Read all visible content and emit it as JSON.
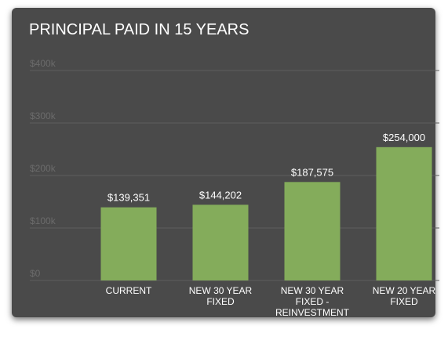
{
  "chart_data": {
    "type": "bar",
    "title": "PRINCIPAL PAID IN 15 YEARS",
    "categories": [
      "CURRENT",
      "NEW 30 YEAR FIXED",
      "NEW 30 YEAR FIXED - REINVESTMENT",
      "NEW 20 YEAR FIXED"
    ],
    "values": [
      139351,
      144202,
      187575,
      254000
    ],
    "value_labels": [
      "$139,351",
      "$144,202",
      "$187,575",
      "$254,000"
    ],
    "color": "#84ac5b",
    "ylim": [
      0,
      400000
    ],
    "yticks": [
      {
        "value": 0,
        "label": "$0"
      },
      {
        "value": 100000,
        "label": "$100k"
      },
      {
        "value": 200000,
        "label": "$200k"
      },
      {
        "value": 300000,
        "label": "$300k"
      },
      {
        "value": 400000,
        "label": "$400k"
      }
    ],
    "grid": true
  }
}
